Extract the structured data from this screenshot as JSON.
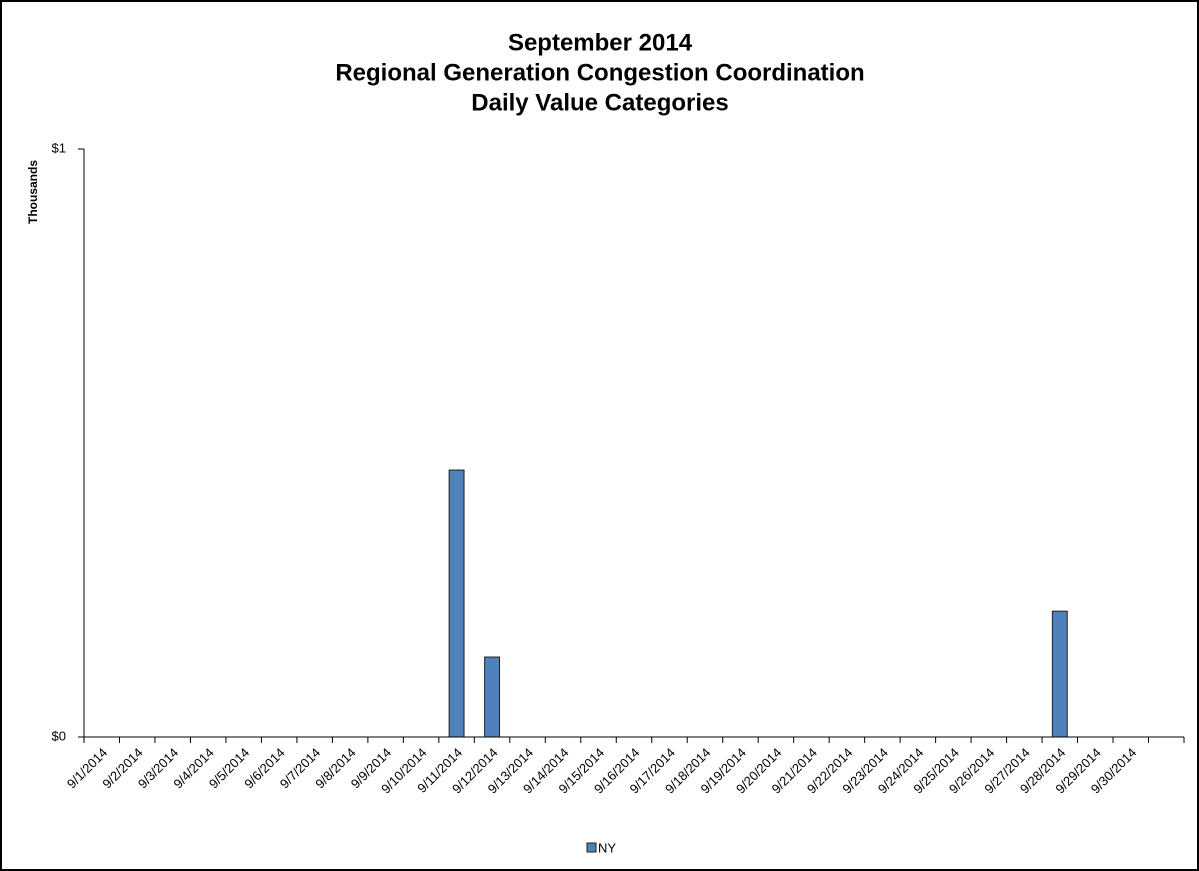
{
  "chart_data": {
    "type": "bar",
    "title": [
      "September 2014",
      "Regional Generation Congestion Coordination",
      "Daily Value Categories"
    ],
    "y_label": "Thousands",
    "categories": [
      "9/1/2014",
      "9/2/2014",
      "9/3/2014",
      "9/4/2014",
      "9/5/2014",
      "9/6/2014",
      "9/7/2014",
      "9/8/2014",
      "9/9/2014",
      "9/10/2014",
      "9/11/2014",
      "9/12/2014",
      "9/13/2014",
      "9/14/2014",
      "9/15/2014",
      "9/16/2014",
      "9/17/2014",
      "9/18/2014",
      "9/19/2014",
      "9/20/2014",
      "9/21/2014",
      "9/22/2014",
      "9/23/2014",
      "9/24/2014",
      "9/25/2014",
      "9/26/2014",
      "9/27/2014",
      "9/28/2014",
      "9/29/2014",
      "9/30/2014",
      null
    ],
    "series": [
      {
        "name": "NY",
        "color": "#4f81bd",
        "values": [
          0,
          0,
          0,
          0,
          0,
          0,
          0,
          0,
          0,
          0,
          0.454,
          0.136,
          0,
          0,
          0,
          0,
          0,
          0,
          0,
          0,
          0,
          0,
          0,
          0,
          0,
          0,
          0,
          0.214,
          0,
          0,
          0
        ]
      }
    ],
    "ylim": [
      0,
      1
    ],
    "yticks": [
      {
        "value": 0,
        "label": "$0"
      },
      {
        "value": 1,
        "label": "$1"
      }
    ],
    "legend": "bottom"
  }
}
